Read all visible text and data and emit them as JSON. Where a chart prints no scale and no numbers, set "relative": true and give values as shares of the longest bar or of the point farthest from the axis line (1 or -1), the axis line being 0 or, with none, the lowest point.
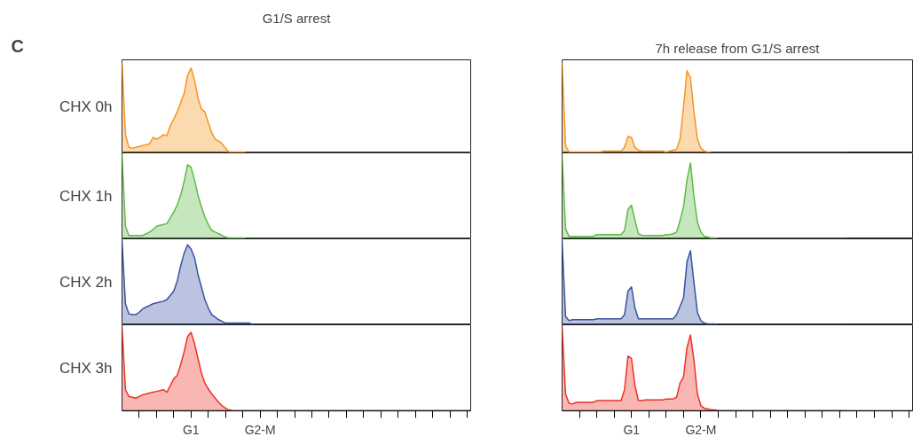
{
  "chart_data": [
    {
      "type": "area",
      "relative": true,
      "title": "G1/S arrest",
      "ylabel": "CHX 0h",
      "annotations": [
        "C"
      ],
      "tick_labels": false,
      "series": [
        {
          "color": "#f7941d",
          "values": [
            1.0,
            0.2,
            0.06,
            0.05,
            0.06,
            0.07,
            0.08,
            0.09,
            0.1,
            0.17,
            0.15,
            0.17,
            0.2,
            0.19,
            0.3,
            0.37,
            0.45,
            0.55,
            0.65,
            0.85,
            0.93,
            0.8,
            0.6,
            0.48,
            0.45,
            0.33,
            0.22,
            0.15,
            0.13,
            0.1,
            0.05,
            0.01,
            0.01,
            0.01,
            0.01,
            0.01,
            0,
            0,
            0,
            0,
            0,
            0,
            0,
            0,
            0,
            0,
            0,
            0,
            0,
            0,
            0,
            0,
            0,
            0,
            0,
            0,
            0,
            0,
            0,
            0,
            0,
            0,
            0,
            0,
            0,
            0,
            0,
            0,
            0,
            0,
            0,
            0,
            0,
            0,
            0,
            0,
            0,
            0,
            0,
            0,
            0,
            0,
            0,
            0,
            0,
            0,
            0,
            0,
            0,
            0,
            0,
            0,
            0,
            0,
            0,
            0,
            0,
            0,
            0,
            0,
            0,
            0
          ]
        }
      ]
    },
    {
      "type": "area",
      "relative": true,
      "title": "7h release from G1/S arrest",
      "tick_labels": false,
      "series": [
        {
          "color": "#f7941d",
          "values": [
            1.0,
            0.08,
            0.01,
            0.01,
            0.01,
            0.01,
            0.01,
            0.01,
            0.01,
            0.01,
            0.01,
            0.01,
            0.02,
            0.02,
            0.02,
            0.02,
            0.02,
            0.02,
            0.06,
            0.18,
            0.17,
            0.06,
            0.03,
            0.02,
            0.02,
            0.02,
            0.02,
            0.02,
            0.02,
            0.02,
            0.01,
            0.02,
            0.03,
            0.04,
            0.15,
            0.5,
            0.9,
            0.82,
            0.45,
            0.15,
            0.05,
            0.02,
            0.01,
            0,
            0,
            0,
            0,
            0,
            0,
            0,
            0,
            0,
            0,
            0,
            0,
            0,
            0,
            0,
            0,
            0,
            0,
            0,
            0,
            0,
            0,
            0,
            0,
            0,
            0,
            0,
            0,
            0,
            0,
            0,
            0,
            0,
            0,
            0,
            0,
            0,
            0,
            0,
            0,
            null,
            null,
            null,
            null,
            null,
            null,
            null,
            null,
            null,
            null,
            null,
            null,
            null,
            null,
            null,
            null,
            null,
            null,
            null
          ]
        }
      ]
    },
    {
      "type": "area",
      "relative": true,
      "ylabel": "CHX 1h",
      "tick_labels": false,
      "series": [
        {
          "color": "#5dbb46",
          "values": [
            1.0,
            0.15,
            0.04,
            0.04,
            0.04,
            0.04,
            0.04,
            0.06,
            0.08,
            0.11,
            0.15,
            0.16,
            0.17,
            0.18,
            0.25,
            0.32,
            0.4,
            0.52,
            0.68,
            0.88,
            0.85,
            0.7,
            0.52,
            0.38,
            0.26,
            0.17,
            0.1,
            0.08,
            0.06,
            0.04,
            0.02,
            0.01,
            0.01,
            0.01,
            0.01,
            0.01,
            0,
            0,
            0,
            0,
            0,
            0,
            0,
            0,
            0,
            0,
            0,
            0,
            0,
            0,
            0,
            0,
            0,
            0,
            0,
            0,
            0,
            0,
            0,
            0,
            0,
            0,
            0,
            0,
            0,
            0,
            0,
            0,
            0,
            0,
            0,
            0,
            0,
            0,
            0,
            0,
            0,
            0,
            0,
            0,
            0,
            0,
            0,
            0,
            0,
            0,
            0,
            0,
            0,
            0,
            0,
            0,
            0,
            0,
            0,
            0,
            0,
            0,
            0,
            0,
            0,
            0
          ]
        }
      ]
    },
    {
      "type": "area",
      "relative": true,
      "tick_labels": false,
      "series": [
        {
          "color": "#5dbb46",
          "values": [
            1.0,
            0.12,
            0.03,
            0.03,
            0.03,
            0.03,
            0.03,
            0.03,
            0.03,
            0.03,
            0.05,
            0.05,
            0.05,
            0.05,
            0.05,
            0.05,
            0.05,
            0.05,
            0.1,
            0.35,
            0.4,
            0.22,
            0.06,
            0.04,
            0.04,
            0.04,
            0.04,
            0.04,
            0.04,
            0.04,
            0.05,
            0.05,
            0.06,
            0.08,
            0.22,
            0.38,
            0.7,
            0.9,
            0.5,
            0.2,
            0.08,
            0.03,
            0.02,
            0.01,
            0.01,
            0,
            0,
            0,
            0,
            0,
            0,
            0,
            0,
            0,
            0,
            0,
            0,
            0,
            0,
            0,
            0,
            0,
            0,
            0,
            0,
            0,
            0,
            0,
            0,
            0,
            0,
            0,
            0,
            0,
            0,
            0,
            0,
            0,
            0,
            0,
            0,
            0,
            0,
            null,
            null,
            null,
            null,
            null,
            null,
            null,
            null,
            null,
            null,
            null,
            null,
            null,
            null,
            null,
            null,
            null,
            null,
            null
          ]
        }
      ]
    },
    {
      "type": "area",
      "relative": true,
      "ylabel": "CHX 2h",
      "tick_labels": false,
      "series": [
        {
          "color": "#3953a4",
          "values": [
            1.0,
            0.25,
            0.13,
            0.12,
            0.12,
            0.15,
            0.19,
            0.21,
            0.23,
            0.25,
            0.26,
            0.27,
            0.28,
            0.3,
            0.35,
            0.4,
            0.52,
            0.7,
            0.85,
            0.95,
            0.9,
            0.8,
            0.6,
            0.45,
            0.3,
            0.2,
            0.12,
            0.09,
            0.06,
            0.04,
            0.02,
            0.02,
            0.02,
            0.02,
            0.02,
            0.02,
            0.02,
            0.02,
            0,
            0,
            0,
            0,
            0,
            0,
            0,
            0,
            0,
            0,
            0,
            0,
            0,
            0,
            0,
            0,
            0,
            0,
            0,
            0,
            0,
            0,
            0,
            0,
            0,
            0,
            0,
            0,
            0,
            0,
            0,
            0,
            0,
            0,
            0,
            0,
            0,
            0,
            0,
            0,
            0,
            0,
            0,
            0,
            0,
            0,
            0,
            0,
            0,
            0,
            0,
            0,
            0,
            0,
            0,
            0,
            0,
            0,
            0,
            0,
            0,
            0,
            0,
            0
          ]
        }
      ]
    },
    {
      "type": "area",
      "relative": true,
      "tick_labels": false,
      "series": [
        {
          "color": "#3953a4",
          "values": [
            1.0,
            0.1,
            0.05,
            0.06,
            0.06,
            0.06,
            0.06,
            0.06,
            0.06,
            0.06,
            0.07,
            0.07,
            0.07,
            0.07,
            0.07,
            0.07,
            0.07,
            0.07,
            0.12,
            0.4,
            0.45,
            0.2,
            0.07,
            0.07,
            0.07,
            0.07,
            0.07,
            0.07,
            0.07,
            0.07,
            0.07,
            0.07,
            0.07,
            0.12,
            0.22,
            0.32,
            0.75,
            0.88,
            0.5,
            0.15,
            0.05,
            0.02,
            0.01,
            0.01,
            0.01,
            0,
            0,
            0,
            0,
            0,
            0,
            0,
            0,
            0,
            0,
            0,
            0,
            0,
            0,
            0,
            0,
            0,
            0,
            0,
            0,
            0,
            0,
            0,
            0,
            0,
            0,
            0,
            0,
            0,
            0,
            0,
            0,
            0,
            0,
            0,
            0,
            0,
            0,
            null,
            null,
            null,
            null,
            null,
            null,
            null,
            null,
            null,
            null,
            null,
            null,
            null,
            null,
            null,
            null,
            null,
            null,
            null
          ]
        }
      ]
    },
    {
      "type": "area",
      "relative": true,
      "ylabel": "CHX 3h",
      "tick_labels": "x",
      "categories": [
        null,
        null,
        null,
        null,
        null,
        null,
        null,
        null,
        null,
        null,
        null,
        null,
        null,
        null,
        null,
        null,
        null,
        null,
        null,
        null,
        "G1",
        null,
        null,
        null,
        null,
        null,
        null,
        null,
        null,
        null,
        null,
        null,
        null,
        null,
        null,
        null,
        null,
        null,
        null,
        null,
        "G2-M",
        null,
        null,
        null,
        null,
        null,
        null,
        null,
        null,
        null,
        null,
        null,
        null,
        null,
        null,
        null,
        null,
        null,
        null,
        null,
        null,
        null,
        null,
        null,
        null,
        null,
        null,
        null,
        null,
        null,
        null,
        null,
        null,
        null,
        null,
        null,
        null,
        null,
        null,
        null,
        null,
        null,
        null,
        null,
        null,
        null,
        null,
        null,
        null,
        null,
        null,
        null,
        null,
        null,
        null,
        null,
        null,
        null,
        null,
        null,
        null,
        null
      ],
      "series": [
        {
          "color": "#ee3124",
          "values": [
            1.0,
            0.25,
            0.17,
            0.16,
            0.15,
            0.17,
            0.19,
            0.2,
            0.21,
            0.22,
            0.23,
            0.24,
            0.25,
            0.22,
            0.3,
            0.38,
            0.42,
            0.55,
            0.7,
            0.88,
            0.93,
            0.8,
            0.62,
            0.45,
            0.33,
            0.26,
            0.2,
            0.15,
            0.1,
            0.06,
            0.03,
            0.01,
            0,
            0,
            0,
            0,
            0,
            0,
            0,
            0,
            0,
            0,
            0,
            0,
            0,
            0,
            0,
            0,
            0,
            0,
            0,
            0,
            0,
            0,
            0,
            0,
            0,
            0,
            0,
            0,
            0,
            0,
            0,
            0,
            0,
            0,
            0,
            0,
            0,
            0,
            0,
            0,
            0,
            0,
            0,
            0,
            0,
            0,
            0,
            0,
            0,
            0,
            0,
            0,
            0,
            0,
            0,
            0,
            0,
            0,
            0,
            0,
            0,
            0,
            0,
            0,
            0,
            0,
            0,
            0,
            0,
            0
          ]
        }
      ]
    },
    {
      "type": "area",
      "relative": true,
      "tick_labels": "x",
      "categories": [
        null,
        null,
        null,
        null,
        null,
        null,
        null,
        null,
        null,
        null,
        null,
        null,
        null,
        null,
        null,
        null,
        null,
        null,
        null,
        null,
        "G1",
        null,
        null,
        null,
        null,
        null,
        null,
        null,
        null,
        null,
        null,
        null,
        null,
        null,
        null,
        null,
        null,
        null,
        null,
        null,
        "G2-M",
        null,
        null,
        null,
        null,
        null,
        null,
        null,
        null,
        null,
        null,
        null,
        null,
        null,
        null,
        null,
        null,
        null,
        null,
        null,
        null,
        null,
        null,
        null,
        null,
        null,
        null,
        null,
        null,
        null,
        null,
        null,
        null,
        null,
        null,
        null,
        null,
        null,
        null,
        null,
        null,
        null,
        null,
        null,
        null,
        null,
        null,
        null,
        null,
        null,
        null,
        null,
        null,
        null,
        null,
        null,
        null,
        null,
        null,
        null,
        null,
        null
      ],
      "series": [
        {
          "color": "#ee3124",
          "values": [
            1.0,
            0.2,
            0.09,
            0.08,
            0.1,
            0.1,
            0.1,
            0.1,
            0.1,
            0.1,
            0.12,
            0.12,
            0.12,
            0.12,
            0.12,
            0.12,
            0.12,
            0.12,
            0.25,
            0.65,
            0.62,
            0.3,
            0.12,
            0.12,
            0.13,
            0.13,
            0.13,
            0.13,
            0.13,
            0.13,
            0.14,
            0.14,
            0.14,
            0.16,
            0.33,
            0.4,
            0.75,
            0.9,
            0.6,
            0.2,
            0.06,
            0.03,
            0.02,
            0.01,
            0.01,
            0,
            0,
            0,
            0,
            0,
            0,
            0,
            0,
            0,
            0,
            0,
            0,
            0,
            0,
            0,
            0,
            0,
            0,
            0,
            0,
            0,
            0,
            0,
            0,
            0,
            0,
            0,
            0,
            0,
            0,
            0,
            0,
            0,
            0,
            0,
            0,
            0,
            0,
            null,
            null,
            null,
            null,
            null,
            null,
            null,
            null,
            null,
            null,
            null,
            null,
            null,
            null,
            null,
            null,
            null,
            null,
            null
          ]
        }
      ]
    }
  ]
}
